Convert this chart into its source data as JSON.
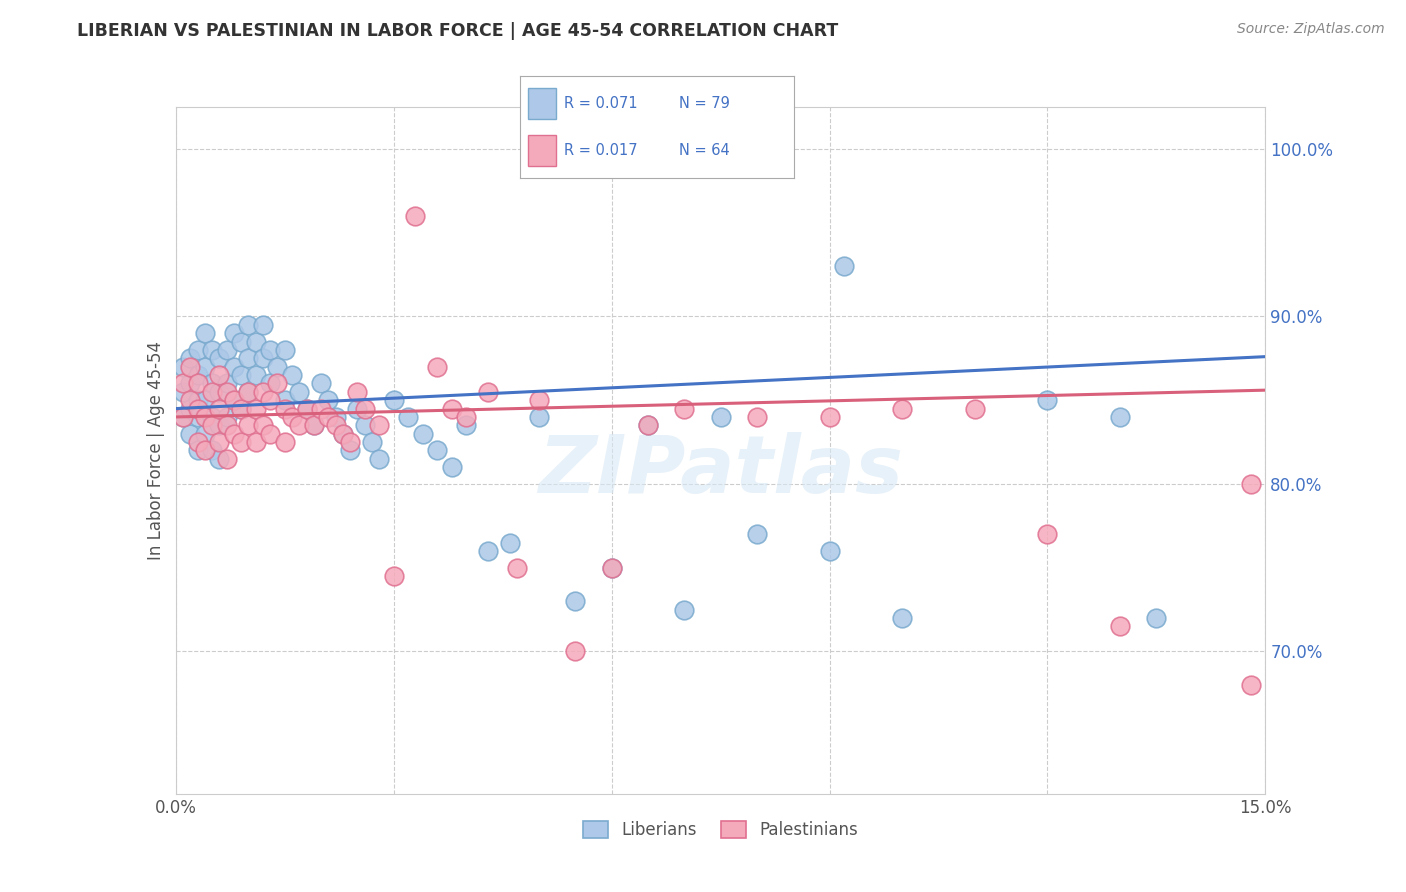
{
  "title": "LIBERIAN VS PALESTINIAN IN LABOR FORCE | AGE 45-54 CORRELATION CHART",
  "source": "Source: ZipAtlas.com",
  "ylabel": "In Labor Force | Age 45-54",
  "xlim": [
    0.0,
    0.15
  ],
  "ylim": [
    0.615,
    1.025
  ],
  "xticks": [
    0.0,
    0.03,
    0.06,
    0.09,
    0.12,
    0.15
  ],
  "yticks_right": [
    0.7,
    0.8,
    0.9,
    1.0
  ],
  "yticklabels_right": [
    "70.0%",
    "80.0%",
    "90.0%",
    "100.0%"
  ],
  "liberian_color": "#adc8e8",
  "liberian_edge": "#7aaace",
  "palestinian_color": "#f5aabb",
  "palestinian_edge": "#e07090",
  "blue_line_color": "#4472c4",
  "red_line_color": "#d9607a",
  "watermark": "ZIPatlas",
  "background_color": "#ffffff",
  "grid_color": "#cccccc",
  "liberian_x": [
    0.001,
    0.001,
    0.001,
    0.002,
    0.002,
    0.002,
    0.002,
    0.003,
    0.003,
    0.003,
    0.003,
    0.003,
    0.004,
    0.004,
    0.004,
    0.004,
    0.005,
    0.005,
    0.005,
    0.005,
    0.006,
    0.006,
    0.006,
    0.006,
    0.007,
    0.007,
    0.007,
    0.008,
    0.008,
    0.008,
    0.009,
    0.009,
    0.009,
    0.01,
    0.01,
    0.01,
    0.011,
    0.011,
    0.012,
    0.012,
    0.013,
    0.013,
    0.014,
    0.015,
    0.015,
    0.016,
    0.017,
    0.018,
    0.019,
    0.02,
    0.021,
    0.022,
    0.023,
    0.024,
    0.025,
    0.026,
    0.027,
    0.028,
    0.03,
    0.032,
    0.034,
    0.036,
    0.038,
    0.04,
    0.043,
    0.046,
    0.05,
    0.055,
    0.06,
    0.065,
    0.07,
    0.08,
    0.09,
    0.1,
    0.12,
    0.13,
    0.135,
    0.092,
    0.075
  ],
  "liberian_y": [
    0.855,
    0.84,
    0.87,
    0.845,
    0.86,
    0.83,
    0.875,
    0.85,
    0.865,
    0.88,
    0.84,
    0.82,
    0.87,
    0.89,
    0.85,
    0.83,
    0.88,
    0.86,
    0.84,
    0.82,
    0.875,
    0.855,
    0.835,
    0.815,
    0.88,
    0.86,
    0.84,
    0.89,
    0.87,
    0.85,
    0.885,
    0.865,
    0.845,
    0.895,
    0.875,
    0.855,
    0.885,
    0.865,
    0.895,
    0.875,
    0.88,
    0.86,
    0.87,
    0.88,
    0.85,
    0.865,
    0.855,
    0.845,
    0.835,
    0.86,
    0.85,
    0.84,
    0.83,
    0.82,
    0.845,
    0.835,
    0.825,
    0.815,
    0.85,
    0.84,
    0.83,
    0.82,
    0.81,
    0.835,
    0.76,
    0.765,
    0.84,
    0.73,
    0.75,
    0.835,
    0.725,
    0.77,
    0.76,
    0.72,
    0.85,
    0.84,
    0.72,
    0.93,
    0.84
  ],
  "palestinian_x": [
    0.001,
    0.001,
    0.002,
    0.002,
    0.003,
    0.003,
    0.003,
    0.004,
    0.004,
    0.005,
    0.005,
    0.006,
    0.006,
    0.006,
    0.007,
    0.007,
    0.007,
    0.008,
    0.008,
    0.009,
    0.009,
    0.01,
    0.01,
    0.011,
    0.011,
    0.012,
    0.012,
    0.013,
    0.013,
    0.014,
    0.015,
    0.015,
    0.016,
    0.017,
    0.018,
    0.019,
    0.02,
    0.021,
    0.022,
    0.023,
    0.024,
    0.025,
    0.026,
    0.028,
    0.03,
    0.033,
    0.036,
    0.038,
    0.04,
    0.043,
    0.047,
    0.05,
    0.055,
    0.06,
    0.065,
    0.07,
    0.08,
    0.09,
    0.1,
    0.11,
    0.12,
    0.13,
    0.148,
    0.148
  ],
  "palestinian_y": [
    0.86,
    0.84,
    0.87,
    0.85,
    0.845,
    0.825,
    0.86,
    0.84,
    0.82,
    0.855,
    0.835,
    0.865,
    0.845,
    0.825,
    0.855,
    0.835,
    0.815,
    0.85,
    0.83,
    0.845,
    0.825,
    0.855,
    0.835,
    0.845,
    0.825,
    0.855,
    0.835,
    0.85,
    0.83,
    0.86,
    0.845,
    0.825,
    0.84,
    0.835,
    0.845,
    0.835,
    0.845,
    0.84,
    0.835,
    0.83,
    0.825,
    0.855,
    0.845,
    0.835,
    0.745,
    0.96,
    0.87,
    0.845,
    0.84,
    0.855,
    0.75,
    0.85,
    0.7,
    0.75,
    0.835,
    0.845,
    0.84,
    0.84,
    0.845,
    0.845,
    0.77,
    0.715,
    0.8,
    0.68
  ]
}
